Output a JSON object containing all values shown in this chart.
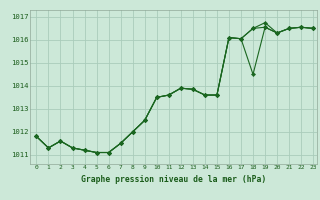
{
  "title": "Graphe pression niveau de la mer (hPa)",
  "background_color": "#cce8d8",
  "grid_color": "#aaccbb",
  "line_color": "#1a6620",
  "xlim_min": -0.5,
  "xlim_max": 23.3,
  "ylim_min": 1010.6,
  "ylim_max": 1017.3,
  "yticks": [
    1011,
    1012,
    1013,
    1014,
    1015,
    1016,
    1017
  ],
  "xticks": [
    0,
    1,
    2,
    3,
    4,
    5,
    6,
    7,
    8,
    9,
    10,
    11,
    12,
    13,
    14,
    15,
    16,
    17,
    18,
    19,
    20,
    21,
    22,
    23
  ],
  "s1": [
    1011.8,
    1011.3,
    1011.6,
    1011.3,
    1011.2,
    1011.1,
    1011.1,
    1011.5,
    1012.0,
    1012.5,
    1013.5,
    1013.6,
    1013.9,
    1013.85,
    1013.6,
    1013.6,
    1016.1,
    1016.05,
    1016.5,
    1016.55,
    1016.3,
    1016.5,
    1016.55,
    1016.5
  ],
  "s2": [
    1011.8,
    1011.3,
    1011.6,
    1011.3,
    1011.2,
    1011.1,
    1011.1,
    1011.5,
    1012.0,
    1012.5,
    1013.5,
    1013.6,
    1013.9,
    1013.85,
    1013.6,
    1013.6,
    1016.1,
    1016.05,
    1014.5,
    1016.55,
    1016.3,
    1016.5,
    1016.55,
    1016.5
  ],
  "s3": [
    1011.8,
    1011.3,
    1011.6,
    1011.3,
    1011.2,
    1011.1,
    1011.1,
    1011.5,
    1012.0,
    1012.5,
    1013.5,
    1013.6,
    1013.9,
    1013.85,
    1013.6,
    1013.6,
    1016.1,
    1016.05,
    1016.5,
    1016.75,
    1016.3,
    1016.5,
    1016.55,
    1016.5
  ],
  "title_fontsize": 5.8,
  "tick_fontsize": 4.5,
  "ytick_fontsize": 5.2,
  "lw": 0.8,
  "ms": 2.2
}
